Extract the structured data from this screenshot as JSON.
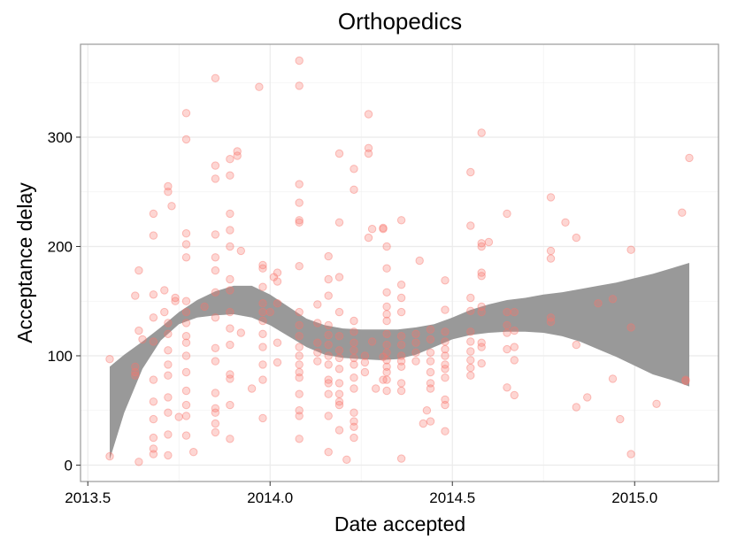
{
  "chart_data": {
    "type": "scatter",
    "title": "Orthopedics",
    "xlabel": "Date accepted",
    "ylabel": "Acceptance delay",
    "xlim": [
      2013.48,
      2015.23
    ],
    "ylim": [
      -15,
      385
    ],
    "x_ticks": [
      2013.5,
      2014.0,
      2014.5,
      2015.0
    ],
    "x_tick_labels": [
      "2013.5",
      "2014.0",
      "2014.5",
      "2015.0"
    ],
    "y_ticks": [
      0,
      100,
      200,
      300
    ],
    "y_tick_labels": [
      "0",
      "100",
      "200",
      "300"
    ],
    "grid": true,
    "point_color": "#f8766d",
    "point_opacity": 0.3,
    "band_color": "#999999",
    "points": [
      [
        2013.56,
        97
      ],
      [
        2013.56,
        8
      ],
      [
        2013.63,
        155
      ],
      [
        2013.63,
        90
      ],
      [
        2013.63,
        85
      ],
      [
        2013.63,
        82
      ],
      [
        2013.64,
        178
      ],
      [
        2013.64,
        123
      ],
      [
        2013.64,
        3
      ],
      [
        2013.65,
        115
      ],
      [
        2013.68,
        230
      ],
      [
        2013.68,
        210
      ],
      [
        2013.68,
        156
      ],
      [
        2013.68,
        135
      ],
      [
        2013.68,
        113
      ],
      [
        2013.68,
        78
      ],
      [
        2013.68,
        58
      ],
      [
        2013.68,
        42
      ],
      [
        2013.68,
        25
      ],
      [
        2013.68,
        15
      ],
      [
        2013.68,
        10
      ],
      [
        2013.71,
        160
      ],
      [
        2013.71,
        140
      ],
      [
        2013.72,
        255
      ],
      [
        2013.72,
        250
      ],
      [
        2013.72,
        130
      ],
      [
        2013.72,
        120
      ],
      [
        2013.72,
        105
      ],
      [
        2013.72,
        92
      ],
      [
        2013.72,
        82
      ],
      [
        2013.72,
        62
      ],
      [
        2013.72,
        48
      ],
      [
        2013.72,
        28
      ],
      [
        2013.72,
        9
      ],
      [
        2013.73,
        237
      ],
      [
        2013.74,
        153
      ],
      [
        2013.74,
        150
      ],
      [
        2013.75,
        44
      ],
      [
        2013.77,
        322
      ],
      [
        2013.77,
        298
      ],
      [
        2013.77,
        212
      ],
      [
        2013.77,
        202
      ],
      [
        2013.77,
        190
      ],
      [
        2013.77,
        150
      ],
      [
        2013.77,
        140
      ],
      [
        2013.77,
        130
      ],
      [
        2013.77,
        118
      ],
      [
        2013.77,
        112
      ],
      [
        2013.77,
        100
      ],
      [
        2013.77,
        85
      ],
      [
        2013.77,
        68
      ],
      [
        2013.77,
        55
      ],
      [
        2013.77,
        45
      ],
      [
        2013.77,
        27
      ],
      [
        2013.79,
        12
      ],
      [
        2013.82,
        145
      ],
      [
        2013.85,
        354
      ],
      [
        2013.85,
        274
      ],
      [
        2013.85,
        262
      ],
      [
        2013.85,
        211
      ],
      [
        2013.85,
        190
      ],
      [
        2013.85,
        178
      ],
      [
        2013.85,
        158
      ],
      [
        2013.85,
        135
      ],
      [
        2013.85,
        107
      ],
      [
        2013.85,
        95
      ],
      [
        2013.85,
        66
      ],
      [
        2013.85,
        52
      ],
      [
        2013.85,
        48
      ],
      [
        2013.85,
        38
      ],
      [
        2013.85,
        30
      ],
      [
        2013.89,
        280
      ],
      [
        2013.89,
        265
      ],
      [
        2013.89,
        230
      ],
      [
        2013.89,
        215
      ],
      [
        2013.89,
        200
      ],
      [
        2013.89,
        170
      ],
      [
        2013.89,
        160
      ],
      [
        2013.89,
        140
      ],
      [
        2013.89,
        125
      ],
      [
        2013.89,
        110
      ],
      [
        2013.89,
        83
      ],
      [
        2013.89,
        79
      ],
      [
        2013.89,
        55
      ],
      [
        2013.89,
        24
      ],
      [
        2013.91,
        287
      ],
      [
        2013.91,
        283
      ],
      [
        2013.92,
        196
      ],
      [
        2013.92,
        121
      ],
      [
        2013.95,
        70
      ],
      [
        2013.97,
        346
      ],
      [
        2013.98,
        183
      ],
      [
        2013.98,
        180
      ],
      [
        2013.98,
        163
      ],
      [
        2013.98,
        148
      ],
      [
        2013.98,
        140
      ],
      [
        2013.98,
        132
      ],
      [
        2013.98,
        120
      ],
      [
        2013.98,
        108
      ],
      [
        2013.98,
        92
      ],
      [
        2013.98,
        78
      ],
      [
        2013.98,
        43
      ],
      [
        2014.0,
        140
      ],
      [
        2014.01,
        172
      ],
      [
        2014.02,
        176
      ],
      [
        2014.02,
        168
      ],
      [
        2014.02,
        148
      ],
      [
        2014.02,
        112
      ],
      [
        2014.02,
        94
      ],
      [
        2014.08,
        370
      ],
      [
        2014.08,
        347
      ],
      [
        2014.08,
        257
      ],
      [
        2014.08,
        240
      ],
      [
        2014.08,
        224
      ],
      [
        2014.08,
        222
      ],
      [
        2014.08,
        182
      ],
      [
        2014.08,
        140
      ],
      [
        2014.08,
        128
      ],
      [
        2014.08,
        118
      ],
      [
        2014.08,
        108
      ],
      [
        2014.08,
        100
      ],
      [
        2014.08,
        92
      ],
      [
        2014.08,
        85
      ],
      [
        2014.08,
        80
      ],
      [
        2014.08,
        65
      ],
      [
        2014.08,
        50
      ],
      [
        2014.08,
        45
      ],
      [
        2014.08,
        24
      ],
      [
        2014.13,
        147
      ],
      [
        2014.13,
        130
      ],
      [
        2014.13,
        112
      ],
      [
        2014.13,
        103
      ],
      [
        2014.13,
        95
      ],
      [
        2014.16,
        191
      ],
      [
        2014.16,
        170
      ],
      [
        2014.16,
        155
      ],
      [
        2014.16,
        128
      ],
      [
        2014.16,
        119
      ],
      [
        2014.16,
        110
      ],
      [
        2014.16,
        100
      ],
      [
        2014.16,
        92
      ],
      [
        2014.16,
        78
      ],
      [
        2014.16,
        75
      ],
      [
        2014.16,
        65
      ],
      [
        2014.16,
        45
      ],
      [
        2014.16,
        12
      ],
      [
        2014.19,
        285
      ],
      [
        2014.19,
        222
      ],
      [
        2014.19,
        172
      ],
      [
        2014.19,
        140
      ],
      [
        2014.19,
        118
      ],
      [
        2014.19,
        105
      ],
      [
        2014.19,
        98
      ],
      [
        2014.19,
        88
      ],
      [
        2014.19,
        75
      ],
      [
        2014.19,
        65
      ],
      [
        2014.19,
        58
      ],
      [
        2014.19,
        55
      ],
      [
        2014.19,
        32
      ],
      [
        2014.21,
        5
      ],
      [
        2014.23,
        271
      ],
      [
        2014.23,
        252
      ],
      [
        2014.23,
        132
      ],
      [
        2014.23,
        122
      ],
      [
        2014.23,
        112
      ],
      [
        2014.23,
        105
      ],
      [
        2014.23,
        98
      ],
      [
        2014.23,
        92
      ],
      [
        2014.23,
        80
      ],
      [
        2014.23,
        70
      ],
      [
        2014.23,
        48
      ],
      [
        2014.23,
        40
      ],
      [
        2014.23,
        35
      ],
      [
        2014.23,
        25
      ],
      [
        2014.26,
        100
      ],
      [
        2014.26,
        94
      ],
      [
        2014.26,
        85
      ],
      [
        2014.27,
        321
      ],
      [
        2014.27,
        290
      ],
      [
        2014.27,
        285
      ],
      [
        2014.27,
        208
      ],
      [
        2014.28,
        216
      ],
      [
        2014.28,
        113
      ],
      [
        2014.29,
        70
      ],
      [
        2014.31,
        217
      ],
      [
        2014.31,
        216
      ],
      [
        2014.31,
        99
      ],
      [
        2014.31,
        78
      ],
      [
        2014.32,
        200
      ],
      [
        2014.32,
        180
      ],
      [
        2014.32,
        158
      ],
      [
        2014.32,
        145
      ],
      [
        2014.32,
        138
      ],
      [
        2014.32,
        132
      ],
      [
        2014.32,
        120
      ],
      [
        2014.32,
        110
      ],
      [
        2014.32,
        103
      ],
      [
        2014.32,
        96
      ],
      [
        2014.32,
        90
      ],
      [
        2014.32,
        85
      ],
      [
        2014.32,
        78
      ],
      [
        2014.32,
        68
      ],
      [
        2014.36,
        224
      ],
      [
        2014.36,
        165
      ],
      [
        2014.36,
        153
      ],
      [
        2014.36,
        140
      ],
      [
        2014.36,
        118
      ],
      [
        2014.36,
        110
      ],
      [
        2014.36,
        100
      ],
      [
        2014.36,
        95
      ],
      [
        2014.36,
        90
      ],
      [
        2014.36,
        75
      ],
      [
        2014.36,
        68
      ],
      [
        2014.36,
        6
      ],
      [
        2014.4,
        120
      ],
      [
        2014.4,
        112
      ],
      [
        2014.4,
        103
      ],
      [
        2014.4,
        95
      ],
      [
        2014.41,
        187
      ],
      [
        2014.42,
        38
      ],
      [
        2014.43,
        50
      ],
      [
        2014.44,
        124
      ],
      [
        2014.44,
        115
      ],
      [
        2014.44,
        103
      ],
      [
        2014.44,
        95
      ],
      [
        2014.44,
        85
      ],
      [
        2014.44,
        75
      ],
      [
        2014.44,
        70
      ],
      [
        2014.44,
        40
      ],
      [
        2014.48,
        169
      ],
      [
        2014.48,
        142
      ],
      [
        2014.48,
        122
      ],
      [
        2014.48,
        113
      ],
      [
        2014.48,
        106
      ],
      [
        2014.48,
        100
      ],
      [
        2014.48,
        92
      ],
      [
        2014.48,
        88
      ],
      [
        2014.48,
        80
      ],
      [
        2014.48,
        60
      ],
      [
        2014.48,
        55
      ],
      [
        2014.48,
        31
      ],
      [
        2014.55,
        268
      ],
      [
        2014.55,
        219
      ],
      [
        2014.55,
        153
      ],
      [
        2014.55,
        141
      ],
      [
        2014.55,
        122
      ],
      [
        2014.55,
        113
      ],
      [
        2014.55,
        104
      ],
      [
        2014.55,
        96
      ],
      [
        2014.55,
        89
      ],
      [
        2014.55,
        82
      ],
      [
        2014.58,
        304
      ],
      [
        2014.58,
        203
      ],
      [
        2014.58,
        200
      ],
      [
        2014.58,
        176
      ],
      [
        2014.58,
        173
      ],
      [
        2014.58,
        145
      ],
      [
        2014.58,
        140
      ],
      [
        2014.58,
        112
      ],
      [
        2014.58,
        108
      ],
      [
        2014.58,
        93
      ],
      [
        2014.6,
        204
      ],
      [
        2014.65,
        230
      ],
      [
        2014.65,
        140
      ],
      [
        2014.65,
        128
      ],
      [
        2014.65,
        121
      ],
      [
        2014.65,
        106
      ],
      [
        2014.65,
        71
      ],
      [
        2014.67,
        140
      ],
      [
        2014.67,
        123
      ],
      [
        2014.67,
        108
      ],
      [
        2014.67,
        96
      ],
      [
        2014.67,
        64
      ],
      [
        2014.77,
        245
      ],
      [
        2014.77,
        196
      ],
      [
        2014.77,
        189
      ],
      [
        2014.77,
        135
      ],
      [
        2014.77,
        131
      ],
      [
        2014.81,
        222
      ],
      [
        2014.84,
        208
      ],
      [
        2014.84,
        110
      ],
      [
        2014.84,
        53
      ],
      [
        2014.87,
        62
      ],
      [
        2014.9,
        148
      ],
      [
        2014.94,
        152
      ],
      [
        2014.94,
        79
      ],
      [
        2014.96,
        42
      ],
      [
        2014.99,
        197
      ],
      [
        2014.99,
        126
      ],
      [
        2014.99,
        10
      ],
      [
        2015.06,
        56
      ],
      [
        2015.13,
        231
      ],
      [
        2015.14,
        78
      ],
      [
        2015.14,
        77
      ],
      [
        2015.15,
        281
      ]
    ],
    "band": {
      "x": [
        2013.56,
        2013.6,
        2013.65,
        2013.7,
        2013.75,
        2013.8,
        2013.85,
        2013.9,
        2013.95,
        2014.0,
        2014.05,
        2014.1,
        2014.15,
        2014.2,
        2014.25,
        2014.3,
        2014.35,
        2014.4,
        2014.45,
        2014.5,
        2014.55,
        2014.6,
        2014.65,
        2014.7,
        2014.75,
        2014.8,
        2014.85,
        2014.9,
        2014.95,
        2015.0,
        2015.05,
        2015.1,
        2015.15
      ],
      "upper": [
        90,
        101,
        113,
        126,
        140,
        151,
        159,
        164,
        164,
        156,
        145,
        134,
        128,
        125,
        124,
        124,
        124,
        126,
        129,
        135,
        142,
        147,
        151,
        153,
        156,
        158,
        161,
        164,
        167,
        171,
        175,
        180,
        185
      ],
      "lower": [
        5,
        48,
        88,
        114,
        129,
        135,
        137,
        138,
        135,
        128,
        118,
        108,
        101,
        98,
        97,
        96,
        97,
        101,
        108,
        115,
        119,
        121,
        122,
        122,
        121,
        118,
        113,
        106,
        99,
        91,
        83,
        78,
        72
      ]
    }
  }
}
